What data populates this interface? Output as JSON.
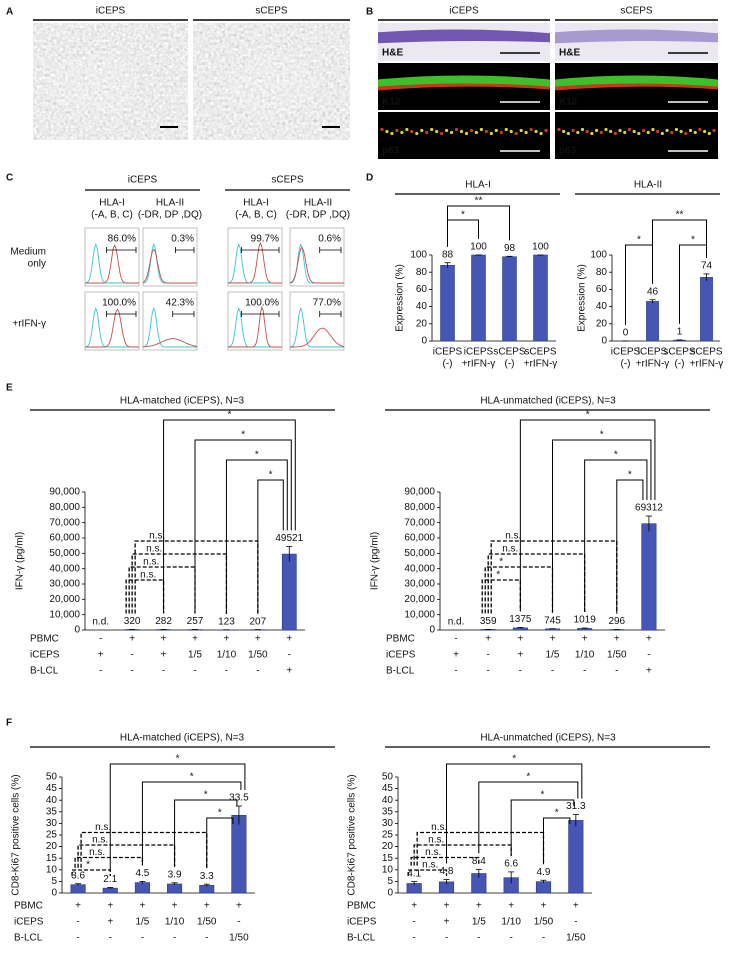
{
  "panels": [
    {
      "label": "A",
      "headers": [
        "iCEPS",
        "sCEPS"
      ]
    },
    {
      "label": "B",
      "headers": [
        "iCEPS",
        "sCEPS"
      ],
      "stains": [
        "H&E",
        "K12",
        "p63"
      ]
    },
    {
      "label": "C",
      "groups": [
        {
          "name": "iCEPS",
          "markers": [
            [
              "HLA-I",
              "(-A, B, C)"
            ],
            [
              "HLA-II",
              "(-DR, DP ,DQ)"
            ]
          ]
        },
        {
          "name": "sCEPS",
          "markers": [
            [
              "HLA-I",
              "(-A, B, C)"
            ],
            [
              "HLA-II",
              "(-DR, DP ,DQ)"
            ]
          ]
        }
      ],
      "conditions": [
        [
          "Medium",
          "only"
        ],
        [
          "+rIFN-γ"
        ]
      ],
      "percentages": [
        [
          "86.0%",
          "0.3%",
          "99.7%",
          "0.6%"
        ],
        [
          "100.0%",
          "42.3%",
          "100.0%",
          "77.0%"
        ]
      ]
    },
    {
      "label": "D"
    },
    {
      "label": "E"
    },
    {
      "label": "F"
    }
  ],
  "chart_data": [
    {
      "type": "bar",
      "title": "HLA-I",
      "ylabel": "Expression (%)",
      "color": "#4656b4",
      "categories": [
        [
          "iCEPS",
          "(-)"
        ],
        [
          "iCEPS",
          "+rIFN-γ"
        ],
        [
          "sCEPS",
          "(-)"
        ],
        [
          "sCEPS",
          "+rIFN-γ"
        ]
      ],
      "values": [
        88,
        100,
        98,
        100
      ],
      "errors": [
        3,
        0,
        0.5,
        0
      ],
      "ylim": [
        0,
        100
      ],
      "yticks": [
        0,
        20,
        40,
        60,
        80,
        100
      ],
      "comparisons": [
        {
          "pair": [
            0,
            1
          ],
          "label": "*",
          "line": "solid"
        },
        {
          "pair": [
            0,
            2
          ],
          "label": "**",
          "line": "solid"
        }
      ]
    },
    {
      "type": "bar",
      "title": "HLA-II",
      "ylabel": "Expression (%)",
      "color": "#4656b4",
      "categories": [
        [
          "iCEPS",
          "(-)"
        ],
        [
          "iCEPS",
          "+rIFN-γ"
        ],
        [
          "sCEPS",
          "(-)"
        ],
        [
          "sCEPS",
          "+rIFN-γ"
        ]
      ],
      "values": [
        0,
        46,
        1,
        74
      ],
      "errors": [
        0,
        2,
        0.3,
        4
      ],
      "ylim": [
        0,
        100
      ],
      "yticks": [
        0,
        20,
        40,
        60,
        80,
        100
      ],
      "comparisons": [
        {
          "pair": [
            0,
            1
          ],
          "label": "*",
          "line": "solid"
        },
        {
          "pair": [
            2,
            3
          ],
          "label": "*",
          "line": "solid"
        },
        {
          "pair": [
            1,
            3
          ],
          "label": "**",
          "line": "solid"
        }
      ]
    },
    {
      "type": "bar",
      "title": "HLA-matched (iCEPS), N=3",
      "ylabel": "IFN-γ (pg/ml)",
      "color": "#4656b4",
      "rows": [
        "PBMC",
        "iCEPS",
        "B-LCL"
      ],
      "categories": [
        [
          "-",
          "+",
          "-"
        ],
        [
          "+",
          "-",
          "-"
        ],
        [
          "+",
          "+",
          "-"
        ],
        [
          "+",
          "1/5",
          "-"
        ],
        [
          "+",
          "1/10",
          "-"
        ],
        [
          "+",
          "1/50",
          "-"
        ],
        [
          "+",
          "-",
          "+"
        ]
      ],
      "values": [
        null,
        320,
        282,
        257,
        123,
        207,
        49521
      ],
      "value_labels": [
        "n.d.",
        "320",
        "282",
        "257",
        "123",
        "207",
        "49521"
      ],
      "errors": [
        null,
        40,
        40,
        40,
        20,
        30,
        5000
      ],
      "ylim": [
        0,
        90000
      ],
      "yticks": [
        0,
        {
          "value": 10000,
          "label": "10,000"
        },
        {
          "value": 20000,
          "label": "20,000"
        },
        {
          "value": 30000,
          "label": "30,000"
        },
        {
          "value": 40000,
          "label": "40,000"
        },
        {
          "value": 50000,
          "label": "50,000"
        },
        {
          "value": 60000,
          "label": "60,000"
        },
        {
          "value": 70000,
          "label": "70,000"
        },
        {
          "value": 80000,
          "label": "80,000"
        },
        {
          "value": 90000,
          "label": "90,000"
        }
      ],
      "comparisons": [
        {
          "pair": [
            5,
            6
          ],
          "label": "*",
          "line": "solid"
        },
        {
          "pair": [
            4,
            6
          ],
          "label": "*",
          "line": "solid"
        },
        {
          "pair": [
            3,
            6
          ],
          "label": "*",
          "line": "solid"
        },
        {
          "pair": [
            2,
            6
          ],
          "label": "*",
          "line": "solid"
        },
        {
          "pair": [
            1,
            2
          ],
          "label": "n.s.",
          "line": "dashed"
        },
        {
          "pair": [
            1,
            3
          ],
          "label": "n.s.",
          "line": "dashed"
        },
        {
          "pair": [
            1,
            4
          ],
          "label": "n.s.",
          "line": "dashed"
        },
        {
          "pair": [
            1,
            5
          ],
          "label": "n.s.",
          "line": "dashed"
        }
      ]
    },
    {
      "type": "bar",
      "title": "HLA-unmatched (iCEPS), N=3",
      "ylabel": "IFN-γ (pg/ml)",
      "color": "#4656b4",
      "rows": [
        "PBMC",
        "iCEPS",
        "B-LCL"
      ],
      "categories": [
        [
          "-",
          "+",
          "-"
        ],
        [
          "+",
          "-",
          "-"
        ],
        [
          "+",
          "+",
          "-"
        ],
        [
          "+",
          "1/5",
          "-"
        ],
        [
          "+",
          "1/10",
          "-"
        ],
        [
          "+",
          "1/50",
          "-"
        ],
        [
          "+",
          "-",
          "+"
        ]
      ],
      "values": [
        null,
        359,
        1375,
        745,
        1019,
        296,
        69312
      ],
      "value_labels": [
        "n.d.",
        "359",
        "1375",
        "745",
        "1019",
        "296",
        "69312"
      ],
      "errors": [
        null,
        50,
        300,
        100,
        250,
        40,
        5000
      ],
      "ylim": [
        0,
        90000
      ],
      "yticks": [
        0,
        {
          "value": 10000,
          "label": "10,000"
        },
        {
          "value": 20000,
          "label": "20,000"
        },
        {
          "value": 30000,
          "label": "30,000"
        },
        {
          "value": 40000,
          "label": "40,000"
        },
        {
          "value": 50000,
          "label": "50,000"
        },
        {
          "value": 60000,
          "label": "60,000"
        },
        {
          "value": 70000,
          "label": "70,000"
        },
        {
          "value": 80000,
          "label": "80,000"
        },
        {
          "value": 90000,
          "label": "90,000"
        }
      ],
      "comparisons": [
        {
          "pair": [
            5,
            6
          ],
          "label": "*",
          "line": "solid"
        },
        {
          "pair": [
            4,
            6
          ],
          "label": "*",
          "line": "solid"
        },
        {
          "pair": [
            3,
            6
          ],
          "label": "*",
          "line": "solid"
        },
        {
          "pair": [
            2,
            6
          ],
          "label": "*",
          "line": "solid"
        },
        {
          "pair": [
            1,
            2
          ],
          "label": "*",
          "line": "dashed"
        },
        {
          "pair": [
            1,
            3
          ],
          "label": "*",
          "line": "dashed"
        },
        {
          "pair": [
            1,
            4
          ],
          "label": "n.s.",
          "line": "dashed"
        },
        {
          "pair": [
            1,
            5
          ],
          "label": "n.s.",
          "line": "dashed"
        }
      ]
    },
    {
      "type": "bar",
      "title": "HLA-matched (iCEPS), N=3",
      "ylabel": "CD8-Ki67 positive cells (%)",
      "color": "#4656b4",
      "rows": [
        "PBMC",
        "iCEPS",
        "B-LCL"
      ],
      "categories": [
        [
          "+",
          "-",
          "-"
        ],
        [
          "+",
          "+",
          "-"
        ],
        [
          "+",
          "1/5",
          "-"
        ],
        [
          "+",
          "1/10",
          "-"
        ],
        [
          "+",
          "1/50",
          "-"
        ],
        [
          "+",
          "-",
          "1/50"
        ]
      ],
      "values": [
        3.6,
        2.1,
        4.5,
        3.9,
        3.3,
        33.5
      ],
      "errors": [
        0.4,
        0.3,
        0.5,
        0.5,
        0.5,
        4
      ],
      "ylim": [
        0,
        50
      ],
      "yticks": [
        0,
        5,
        10,
        15,
        20,
        25,
        30,
        35,
        40,
        45,
        50
      ],
      "comparisons": [
        {
          "pair": [
            4,
            5
          ],
          "label": "*",
          "line": "solid"
        },
        {
          "pair": [
            3,
            5
          ],
          "label": "*",
          "line": "solid"
        },
        {
          "pair": [
            2,
            5
          ],
          "label": "*",
          "line": "solid"
        },
        {
          "pair": [
            1,
            5
          ],
          "label": "*",
          "line": "solid"
        },
        {
          "pair": [
            0,
            1
          ],
          "label": "*",
          "line": "dashed"
        },
        {
          "pair": [
            0,
            2
          ],
          "label": "n.s.",
          "line": "dashed"
        },
        {
          "pair": [
            0,
            3
          ],
          "label": "n.s.",
          "line": "dashed"
        },
        {
          "pair": [
            0,
            4
          ],
          "label": "n.s.",
          "line": "dashed"
        }
      ]
    },
    {
      "type": "bar",
      "title": "HLA-unmatched (iCEPS), N=3",
      "ylabel": "CD8-Ki67 positive cells (%)",
      "color": "#4656b4",
      "rows": [
        "PBMC",
        "iCEPS",
        "B-LCL"
      ],
      "categories": [
        [
          "+",
          "-",
          "-"
        ],
        [
          "+",
          "+",
          "-"
        ],
        [
          "+",
          "1/5",
          "-"
        ],
        [
          "+",
          "1/10",
          "-"
        ],
        [
          "+",
          "1/50",
          "-"
        ],
        [
          "+",
          "-",
          "1/50"
        ]
      ],
      "values": [
        4.1,
        4.8,
        8.4,
        6.6,
        4.9,
        31.3
      ],
      "errors": [
        0.8,
        1,
        1.8,
        2.5,
        0.6,
        2.5
      ],
      "ylim": [
        0,
        50
      ],
      "yticks": [
        0,
        5,
        10,
        15,
        20,
        25,
        30,
        35,
        40,
        45,
        50
      ],
      "comparisons": [
        {
          "pair": [
            4,
            5
          ],
          "label": "*",
          "line": "solid"
        },
        {
          "pair": [
            3,
            5
          ],
          "label": "*",
          "line": "solid"
        },
        {
          "pair": [
            2,
            5
          ],
          "label": "*",
          "line": "solid"
        },
        {
          "pair": [
            1,
            5
          ],
          "label": "*",
          "line": "solid"
        },
        {
          "pair": [
            0,
            1
          ],
          "label": "n.s.",
          "line": "dashed"
        },
        {
          "pair": [
            0,
            2
          ],
          "label": "n.s.",
          "line": "dashed"
        },
        {
          "pair": [
            0,
            3
          ],
          "label": "n.s.",
          "line": "dashed"
        },
        {
          "pair": [
            0,
            4
          ],
          "label": "n.s.",
          "line": "dashed"
        }
      ]
    }
  ]
}
